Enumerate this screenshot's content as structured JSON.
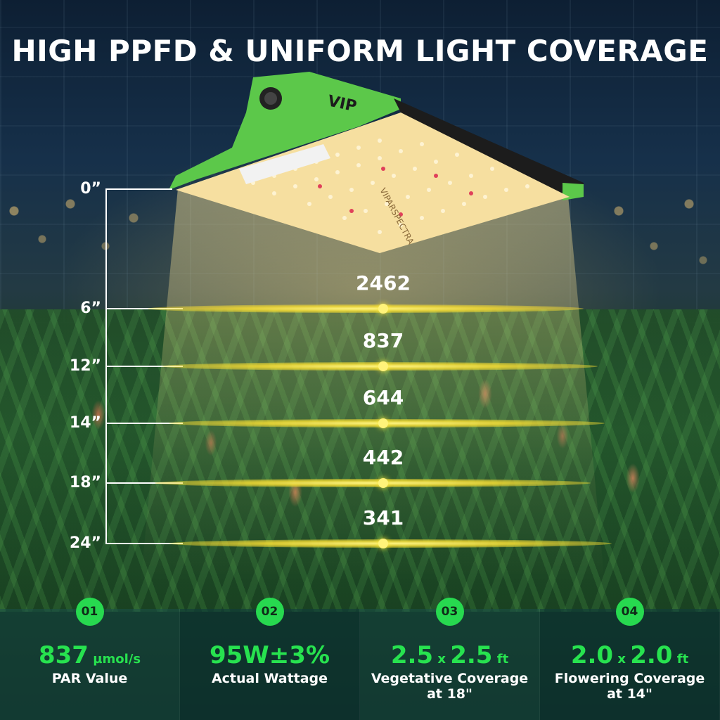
{
  "title": "HIGH PPFD & UNIFORM LIGHT COVERAGE",
  "product": {
    "logo_text": "VIP",
    "panel_brand": "VIPARSPECTRA",
    "color": "#5cc84a"
  },
  "scale": {
    "top_label": "0”",
    "levels": [
      {
        "height_label": "6”",
        "ppfd": "2462"
      },
      {
        "height_label": "12”",
        "ppfd": "837"
      },
      {
        "height_label": "14”",
        "ppfd": "644"
      },
      {
        "height_label": "18”",
        "ppfd": "442"
      },
      {
        "height_label": "24”",
        "ppfd": "341"
      }
    ]
  },
  "features": [
    {
      "badge": "01",
      "value": "837",
      "unit": " µmol/s",
      "label": "PAR Value"
    },
    {
      "badge": "02",
      "value": "95W±3%",
      "label": "Actual Wattage"
    },
    {
      "badge": "03",
      "value_a": "2.5",
      "times": "x",
      "value_b": "2.5",
      "unit": "ft",
      "label_line1": "Vegetative Coverage",
      "label_line2": "at 18\""
    },
    {
      "badge": "04",
      "value_a": "2.0",
      "times": "x",
      "value_b": "2.0",
      "unit": "ft",
      "label_line1": "Flowering Coverage",
      "label_line2": "at 14\""
    }
  ],
  "colors": {
    "accent_green": "#27e24f",
    "beam_yellow": "#f5dc32"
  }
}
